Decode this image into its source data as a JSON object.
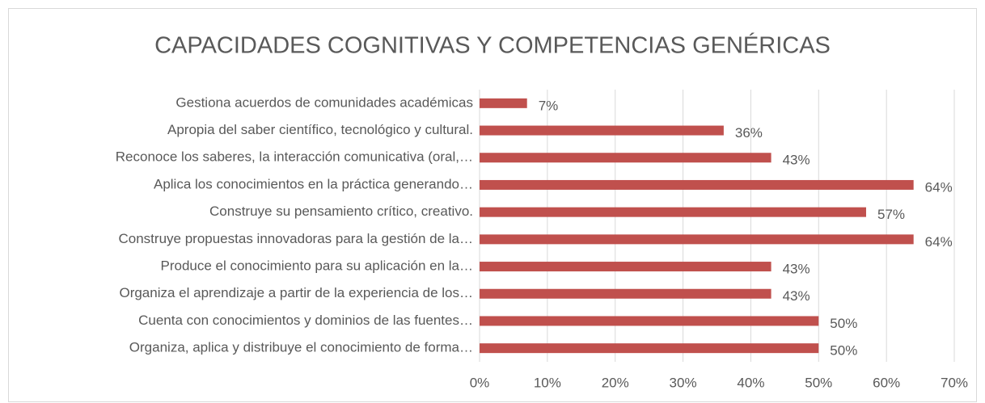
{
  "chart_data": {
    "type": "bar",
    "orientation": "horizontal",
    "title": "CAPACIDADES COGNITIVAS Y COMPETENCIAS GENÉRICAS",
    "categories": [
      "Gestiona acuerdos de comunidades académicas",
      "Apropia del saber científico, tecnológico y cultural.",
      "Reconoce los saberes, la interacción comunicativa (oral,…",
      "Aplica los conocimientos en la práctica generando…",
      "Construye su pensamiento crítico, creativo.",
      "Construye propuestas innovadoras para la gestión de la…",
      "Produce el conocimiento para su aplicación en la…",
      "Organiza el aprendizaje a partir de la experiencia de los…",
      "Cuenta con conocimientos y dominios de las fuentes…",
      "Organiza, aplica y distribuye el conocimiento de forma…"
    ],
    "values": [
      7,
      36,
      43,
      64,
      57,
      64,
      43,
      43,
      50,
      50
    ],
    "value_labels": [
      "7%",
      "36%",
      "43%",
      "64%",
      "57%",
      "64%",
      "43%",
      "43%",
      "50%",
      "50%"
    ],
    "color": "#c0504d",
    "xlim": [
      0,
      70
    ],
    "xticks": [
      {
        "value": 0,
        "label": "0%"
      },
      {
        "value": 10,
        "label": "10%"
      },
      {
        "value": 20,
        "label": "20%"
      },
      {
        "value": 30,
        "label": "30%"
      },
      {
        "value": 40,
        "label": "40%"
      },
      {
        "value": 50,
        "label": "50%"
      },
      {
        "value": 60,
        "label": "60%"
      },
      {
        "value": 70,
        "label": "70%"
      }
    ],
    "grid": true
  }
}
